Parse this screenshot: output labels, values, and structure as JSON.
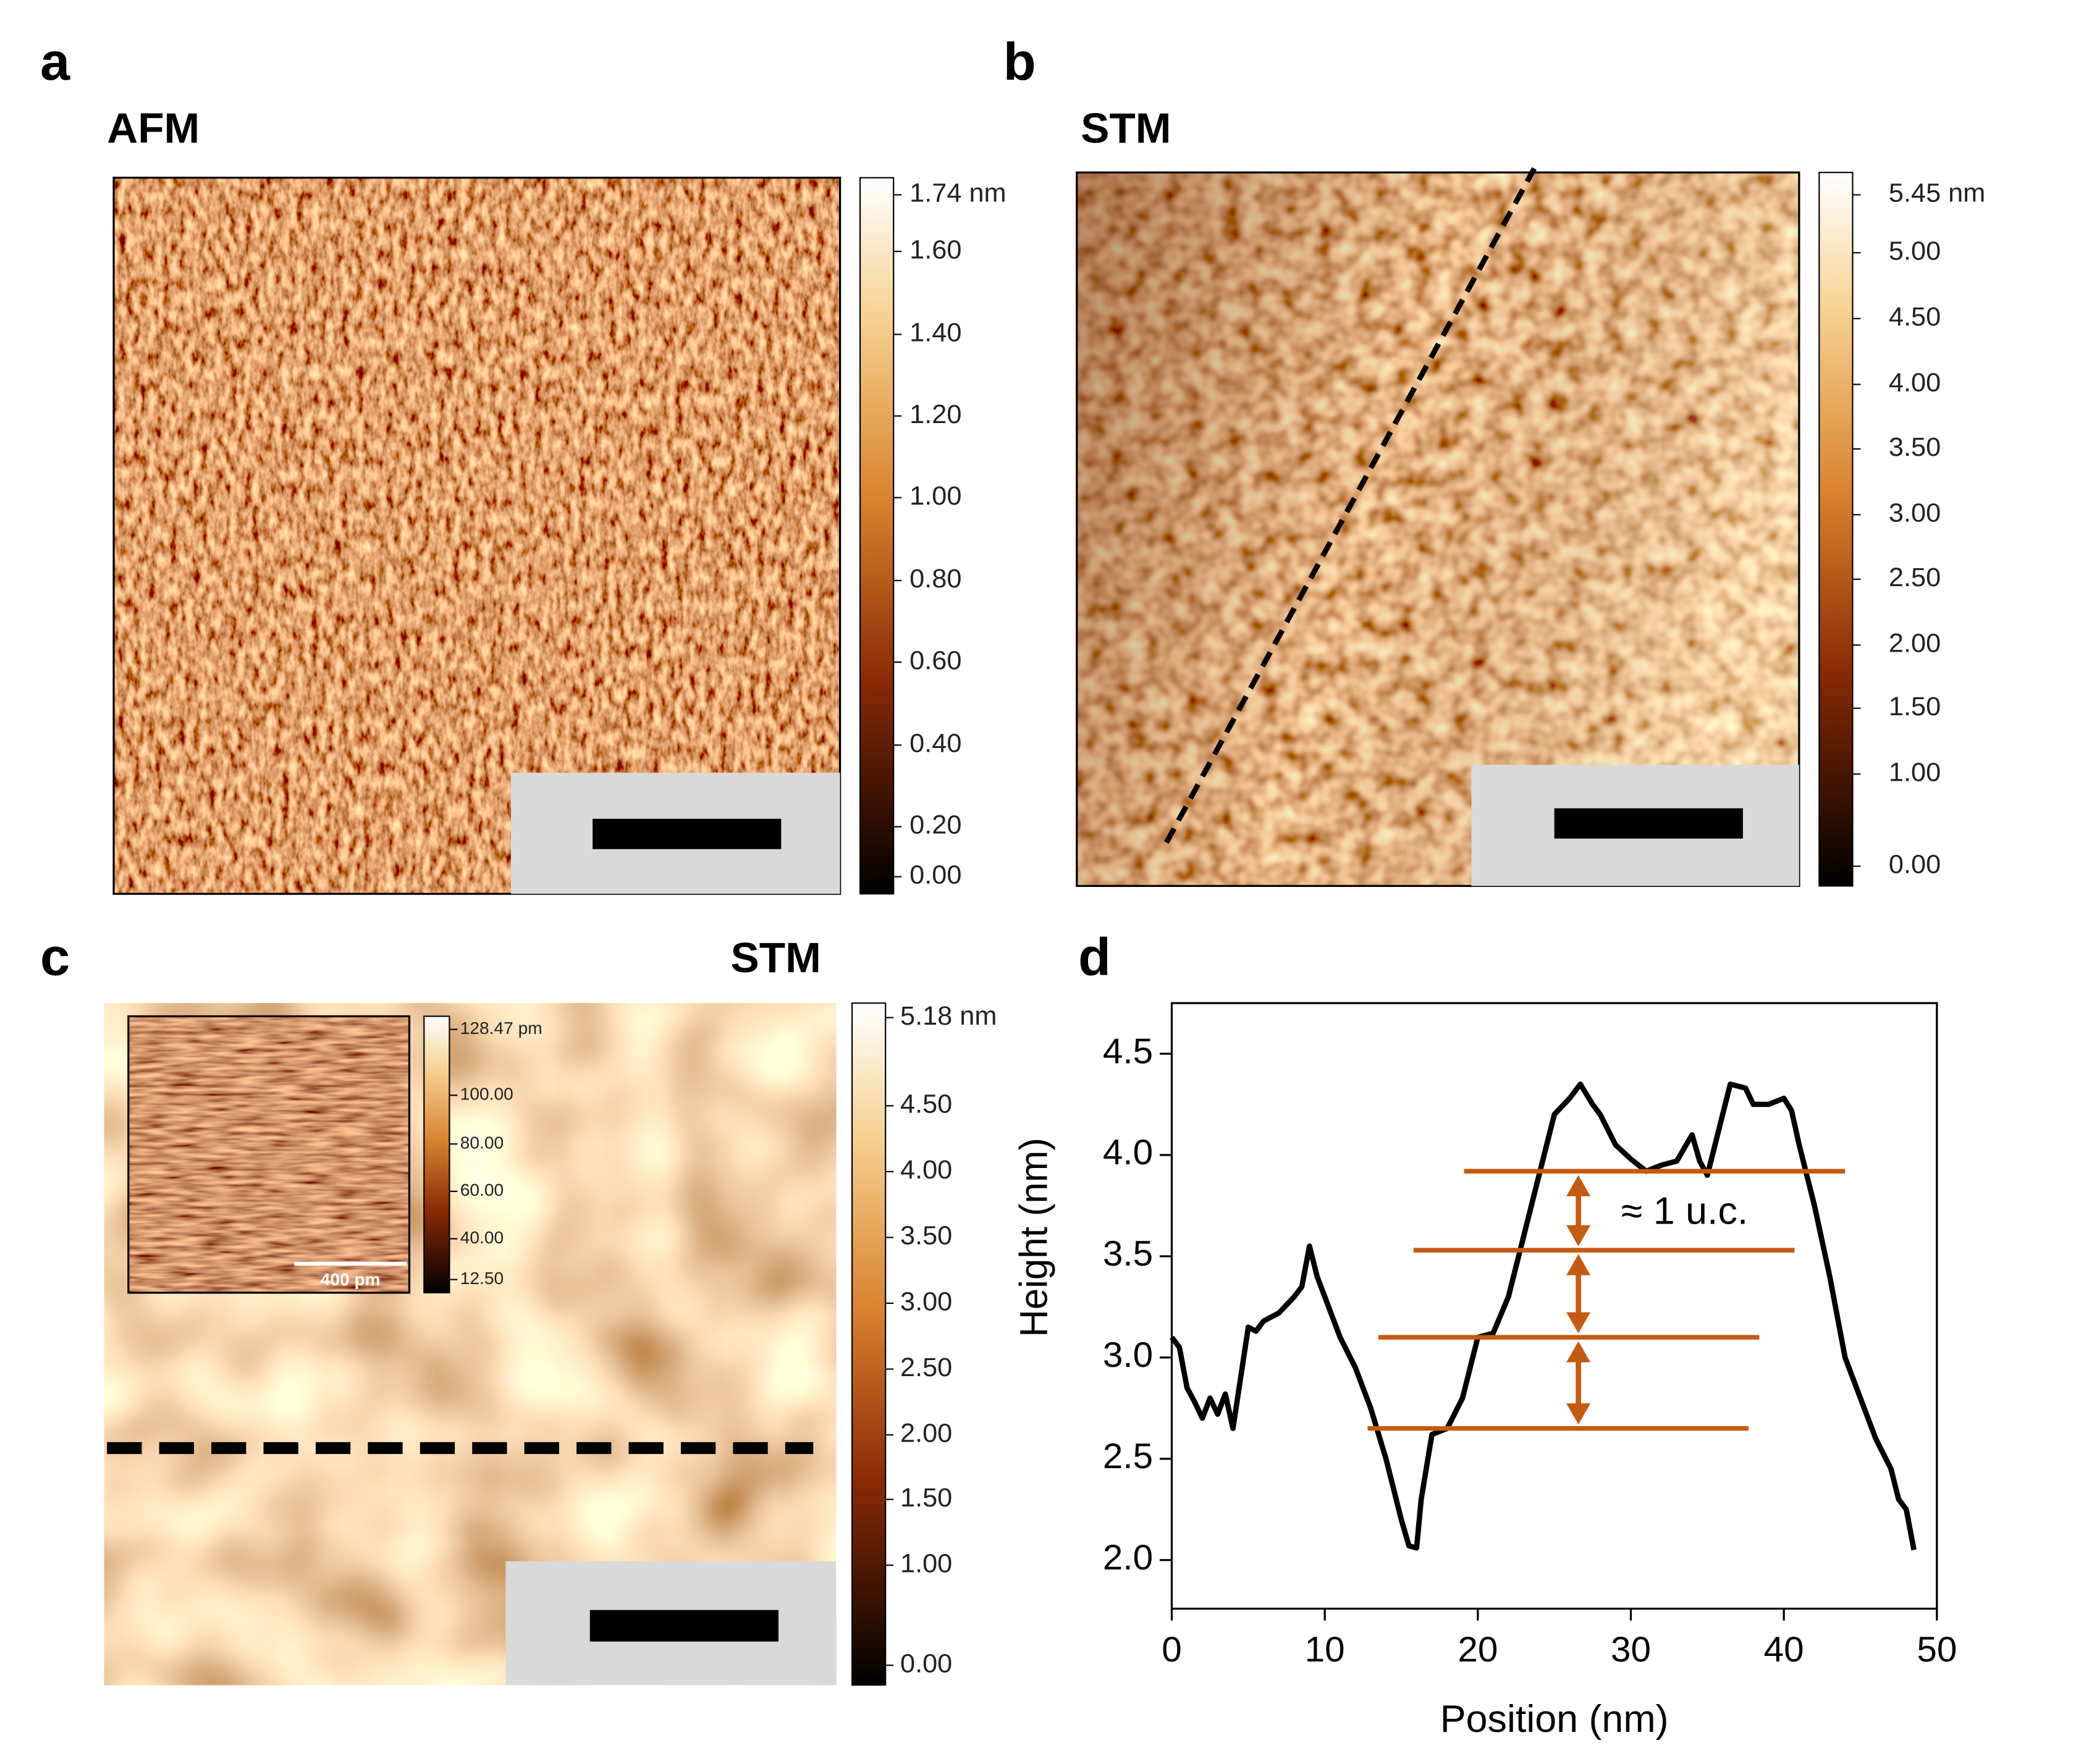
{
  "panels": {
    "a": {
      "label": "a",
      "technique": "AFM",
      "colorbar": [
        "1.74 nm",
        "1.60",
        "1.40",
        "1.20",
        "1.00",
        "0.80",
        "0.60",
        "0.40",
        "0.20",
        "0.00"
      ]
    },
    "b": {
      "label": "b",
      "technique": "STM",
      "colorbar": [
        "5.45 nm",
        "5.00",
        "4.50",
        "4.00",
        "3.50",
        "3.00",
        "2.50",
        "2.00",
        "1.50",
        "1.00",
        "0.00"
      ]
    },
    "c": {
      "label": "c",
      "technique": "STM",
      "colorbar": [
        "5.18 nm",
        "4.50",
        "4.00",
        "3.50",
        "3.00",
        "2.50",
        "2.00",
        "1.50",
        "1.00",
        "0.00"
      ],
      "inset": {
        "colorbar": [
          "128.47 pm",
          "100.00",
          "80.00",
          "60.00",
          "40.00",
          "12.50"
        ],
        "scale_bar": "400 pm"
      }
    },
    "d": {
      "label": "d"
    }
  },
  "chart_data": {
    "type": "line",
    "xlabel": "Position (nm)",
    "ylabel": "Height (nm)",
    "color": "#000000",
    "x": [
      0,
      0.5,
      1,
      1.5,
      2,
      2.5,
      3,
      3.5,
      4,
      4.5,
      5,
      5.5,
      6,
      7,
      8,
      8.5,
      9,
      9.5,
      10,
      11,
      12,
      13,
      14,
      15,
      15.5,
      16,
      16.3,
      17,
      18,
      19,
      20,
      21,
      22,
      23,
      24,
      25,
      26,
      26.7,
      27.5,
      28,
      29,
      30,
      31,
      32,
      33,
      34,
      34.5,
      35,
      35.5,
      36,
      36.5,
      37.5,
      38,
      39,
      40,
      40.5,
      41,
      42,
      43,
      44,
      45,
      46,
      47,
      47.5,
      48,
      48.5
    ],
    "values": [
      3.1,
      3.05,
      2.85,
      2.78,
      2.7,
      2.8,
      2.72,
      2.82,
      2.65,
      2.9,
      3.15,
      3.13,
      3.18,
      3.22,
      3.3,
      3.35,
      3.55,
      3.4,
      3.3,
      3.1,
      2.95,
      2.75,
      2.5,
      2.2,
      2.07,
      2.06,
      2.3,
      2.62,
      2.65,
      2.8,
      3.1,
      3.12,
      3.3,
      3.6,
      3.9,
      4.2,
      4.28,
      4.35,
      4.25,
      4.2,
      4.05,
      3.98,
      3.92,
      3.95,
      3.97,
      4.1,
      3.97,
      3.9,
      4.05,
      4.2,
      4.35,
      4.33,
      4.25,
      4.25,
      4.28,
      4.22,
      4.05,
      3.75,
      3.4,
      3.0,
      2.8,
      2.6,
      2.45,
      2.3,
      2.25,
      2.05
    ],
    "xlim": [
      0,
      50
    ],
    "ylim": [
      1.76,
      4.75
    ],
    "xticks": [
      0,
      10,
      20,
      30,
      40,
      50
    ],
    "yticks": [
      {
        "value": 2,
        "label": "2.0"
      },
      2.5,
      {
        "value": 3,
        "label": "3.0"
      },
      3.5,
      {
        "value": 4,
        "label": "4.0"
      },
      4.5
    ],
    "reference_lines": [
      {
        "y": 3.92,
        "x": [
          19.1,
          44
        ]
      },
      {
        "y": 3.53,
        "x": [
          15.8,
          40.7
        ]
      },
      {
        "y": 3.1,
        "x": [
          13.5,
          38.4
        ]
      },
      {
        "y": 2.65,
        "x": [
          12.8,
          37.7
        ]
      }
    ],
    "reference_color": "#c55a11",
    "annotation": "≈ 1 u.c."
  }
}
